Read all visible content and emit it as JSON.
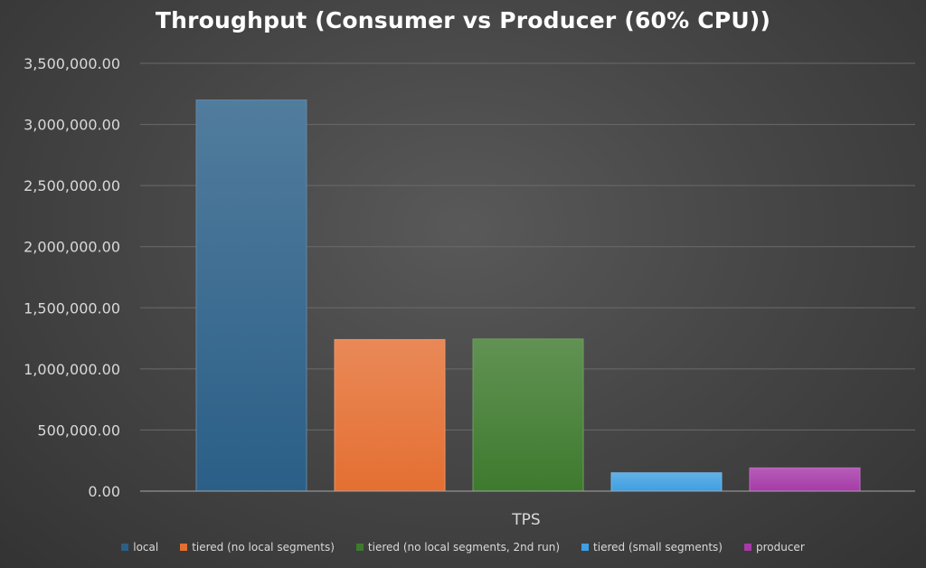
{
  "chart_data": {
    "type": "bar",
    "title": "Throughput (Consumer vs Producer (60% CPU))",
    "categories": [
      "TPS"
    ],
    "ylim": [
      0,
      3500000
    ],
    "yticks": [
      0,
      500000,
      1000000,
      1500000,
      2000000,
      2500000,
      3000000,
      3500000
    ],
    "ytick_labels": [
      "0.00",
      "500,000.00",
      "1,000,000.00",
      "1,500,000.00",
      "2,000,000.00",
      "2,500,000.00",
      "3,000,000.00",
      "3,500,000.00"
    ],
    "grid": true,
    "legend_position": "bottom",
    "series": [
      {
        "name": "local",
        "values": [
          3200000
        ],
        "color": "#2b5f87"
      },
      {
        "name": "tiered (no local segments)",
        "values": [
          1240000
        ],
        "color": "#e46f32"
      },
      {
        "name": "tiered (no local segments, 2nd run)",
        "values": [
          1245000
        ],
        "color": "#3e7a2e"
      },
      {
        "name": "tiered (small segments)",
        "values": [
          150000
        ],
        "color": "#3f9fe0"
      },
      {
        "name": "producer",
        "values": [
          190000
        ],
        "color": "#a63aa8"
      }
    ]
  }
}
